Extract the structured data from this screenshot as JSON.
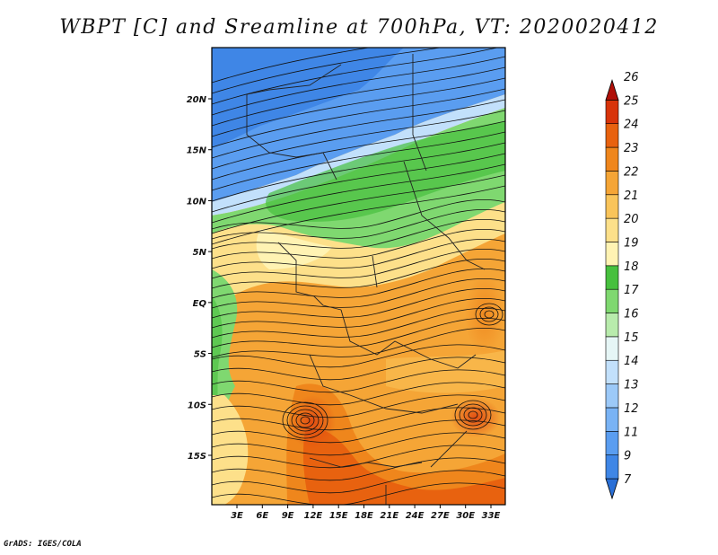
{
  "title": "WBPT [C] and Sreamline at 700hPa, VT: 2020020412",
  "credit": "GrADS: IGES/COLA",
  "map": {
    "lat_labels": [
      "20N",
      "15N",
      "10N",
      "5N",
      "EQ",
      "5S",
      "10S",
      "15S"
    ],
    "lon_labels": [
      "3E",
      "6E",
      "9E",
      "12E",
      "15E",
      "18E",
      "21E",
      "24E",
      "27E",
      "30E",
      "33E"
    ],
    "lat_values": [
      20,
      15,
      10,
      5,
      0,
      -5,
      -10,
      -15
    ],
    "lon_values": [
      3,
      6,
      9,
      12,
      15,
      18,
      21,
      24,
      27,
      30,
      33
    ]
  },
  "colorbar": {
    "labels": [
      "7",
      "9",
      "11",
      "12",
      "13",
      "14",
      "15",
      "16",
      "17",
      "18",
      "19",
      "20",
      "21",
      "22",
      "23",
      "24",
      "25",
      "26"
    ],
    "colors": [
      "#2a6fd6",
      "#3f86e6",
      "#5a9df0",
      "#79b3f5",
      "#9cc9f8",
      "#c2e0fb",
      "#e6f6f6",
      "#b8ebac",
      "#7fd870",
      "#47c03e",
      "#fff3b3",
      "#fde08a",
      "#f9c45a",
      "#f5a536",
      "#ef861c",
      "#e8620f",
      "#d8340a",
      "#b01008"
    ]
  }
}
